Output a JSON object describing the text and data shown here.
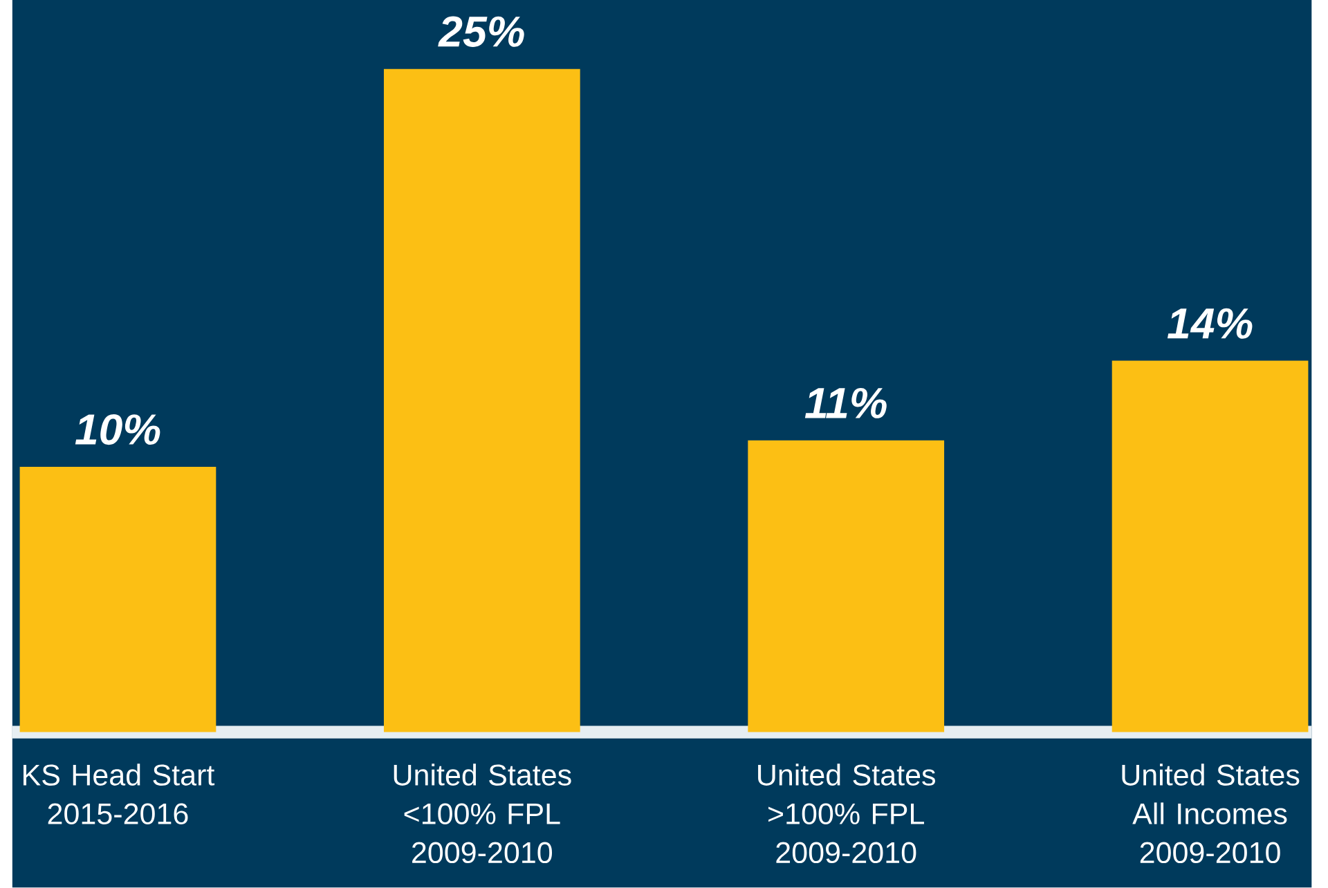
{
  "chart_data": {
    "type": "bar",
    "categories": [
      "KS Head Start 2015-2016",
      "United States <100% FPL 2009-2010",
      "United States >100% FPL 2009-2010",
      "United States All Incomes 2009-2010"
    ],
    "values": [
      10,
      25,
      11,
      14
    ],
    "value_labels": [
      "10%",
      "25%",
      "11%",
      "14%"
    ],
    "color": "#fcbf14"
  }
}
